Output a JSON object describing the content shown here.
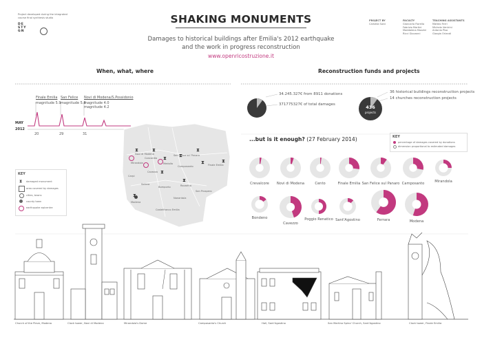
{
  "header": {
    "title": "SHAKING MONUMENTS",
    "subtitle": "Damages to historical buildings after Emilia's 2012 earthquake\nand the work in progress reconstruction",
    "url": "www.openricostruzione.it",
    "left_note": "Project developed during the integrated\ncourse final synthesis studio",
    "left_logo": "DE\nSTY\nGN",
    "project_by_label": "PROJECT BY",
    "project_by": "Carlotta Sorci",
    "faculty_label": "FACULTY",
    "faculty": "Giancarlo Fiorella\nFabrizio Martini\nMaddalena Mazzini\nRicci Giovanni",
    "assistants_label": "TEACHING ASSISTANTS",
    "assistants": "Matteo Ferri\nMichela Ventrini\nAntonio Pisa\nGiorgia Orlandi"
  },
  "timeline": {
    "heading": "When, what, where",
    "month": "MAY",
    "year": "2012",
    "events": [
      {
        "place": "Finale Emilia",
        "magnitude": "magnitude 5.9"
      },
      {
        "place": "San Felice",
        "magnitude": "magnitude 5.8"
      },
      {
        "place": "Novi di Modena/S.Possidonio",
        "magnitude": "magnitude 4.0\nmagnitude 4.2"
      }
    ],
    "days": [
      "20",
      "29",
      "31"
    ]
  },
  "key1": {
    "title": "KEY",
    "items": [
      "damaged monument",
      "area covered by damages",
      "cities, towns",
      "county town",
      "earthquake epicentre"
    ]
  },
  "funds": {
    "heading": "Reconstruction funds and projects",
    "donations": "34.245.327€ from 8911 donations",
    "total_damages": "371775327€ of total damages",
    "historical_projects": "36 historical buildings reconstruction projects",
    "churches_projects": "14 churches reconstruction projects",
    "projects_count": "436",
    "projects_label": "projects"
  },
  "enough": {
    "heading": "...but is it enough?",
    "date": "(27 February 2014)"
  },
  "key2": {
    "title": "KEY",
    "items": [
      "percentage of damages covered by donations",
      "dimension proportional to estimated damages"
    ]
  },
  "chart_data": {
    "type": "pie",
    "title": "...but is it enough? (27 February 2014)",
    "series": [
      {
        "name": "percentage of damages covered by donations",
        "categories": [
          "Crevalcore",
          "Novi di Modena",
          "Cento",
          "Finale Emilia",
          "San Felice sul Panaro",
          "Camposanto",
          "Mirandola",
          "Bondeno",
          "Cavezzo",
          "Poggio Renatico",
          "Sant'Agostino",
          "Ferrara",
          "Modena"
        ],
        "values": [
          3,
          5,
          2,
          27,
          10,
          28,
          25,
          15,
          45,
          50,
          12,
          60,
          55
        ]
      }
    ]
  },
  "buildings": [
    "Church of the Pieve, Modena",
    "Clock tower, Novi di Modena",
    "Mirandola's Dome",
    "Camposanto's Church",
    "Hall, Sant'Agostino",
    "San Martino Spino' Church, Sant'Agostino",
    "Clock tower, Finale Emilia"
  ],
  "map_labels": [
    "Mirandola",
    "Finale Emilia",
    "Novi di Modena",
    "Cavezzo",
    "Medolla",
    "Camposanto",
    "San Felice sul Panaro",
    "Carpi",
    "Modena",
    "Bomporto",
    "Ravarino",
    "Castelfranco Emilia",
    "Nonantola",
    "San Prospero",
    "Soliera",
    "Concordia"
  ],
  "colors": {
    "accent": "#c2397f",
    "dark": "#3a3a3a",
    "grey": "#e6e6e6",
    "mid": "#9a9a9a"
  }
}
